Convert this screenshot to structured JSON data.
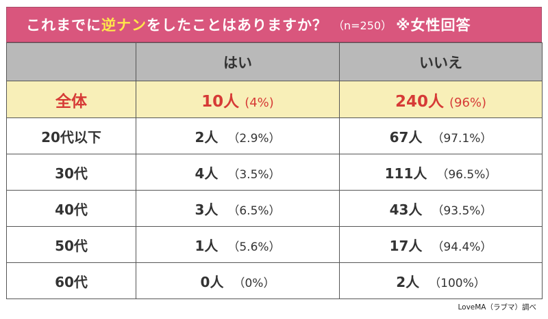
{
  "title": {
    "prefix": "これまでに",
    "highlight": "逆ナン",
    "suffix": "をしたことはありますか？",
    "sample": "（n=250）",
    "note": "※女性回答"
  },
  "table": {
    "headers": [
      "",
      "はい",
      "いいえ"
    ],
    "total": {
      "label": "全体",
      "yes_count": "10人",
      "yes_pct": "(4%)",
      "no_count": "240人",
      "no_pct": "(96%)"
    },
    "rows": [
      {
        "label": "20代以下",
        "yes_count": "2人",
        "yes_pct": "（2.9%）",
        "no_count": "67人",
        "no_pct": "（97.1%）"
      },
      {
        "label": "30代",
        "yes_count": "4人",
        "yes_pct": "（3.5%）",
        "no_count": "111人",
        "no_pct": "（96.5%）"
      },
      {
        "label": "40代",
        "yes_count": "3人",
        "yes_pct": "（6.5%）",
        "no_count": "43人",
        "no_pct": "（93.5%）"
      },
      {
        "label": "50代",
        "yes_count": "1人",
        "yes_pct": "（5.6%）",
        "no_count": "17人",
        "no_pct": "（94.4%）"
      },
      {
        "label": "60代",
        "yes_count": "0人",
        "yes_pct": "（0%）",
        "no_count": "2人",
        "no_pct": "（100%）"
      }
    ]
  },
  "credit": "LoveMA（ラブマ）調べ",
  "colors": {
    "title_bg": "#d9567d",
    "highlight": "#ffe84a",
    "header_bg": "#b9b9b9",
    "total_bg": "#f8efb8",
    "total_text": "#d63a36"
  },
  "chart_data": {
    "type": "table",
    "title": "これまでに逆ナンをしたことはありますか？（n=250）※女性回答",
    "columns": [
      "",
      "はい",
      "いいえ"
    ],
    "categories": [
      "全体",
      "20代以下",
      "30代",
      "40代",
      "50代",
      "60代"
    ],
    "series": [
      {
        "name": "はい",
        "counts": [
          10,
          2,
          4,
          3,
          1,
          0
        ],
        "percent": [
          4,
          2.9,
          3.5,
          6.5,
          5.6,
          0
        ]
      },
      {
        "name": "いいえ",
        "counts": [
          240,
          67,
          111,
          43,
          17,
          2
        ],
        "percent": [
          96,
          97.1,
          96.5,
          93.5,
          94.4,
          100
        ]
      }
    ],
    "source": "LoveMA（ラブマ）調べ"
  }
}
